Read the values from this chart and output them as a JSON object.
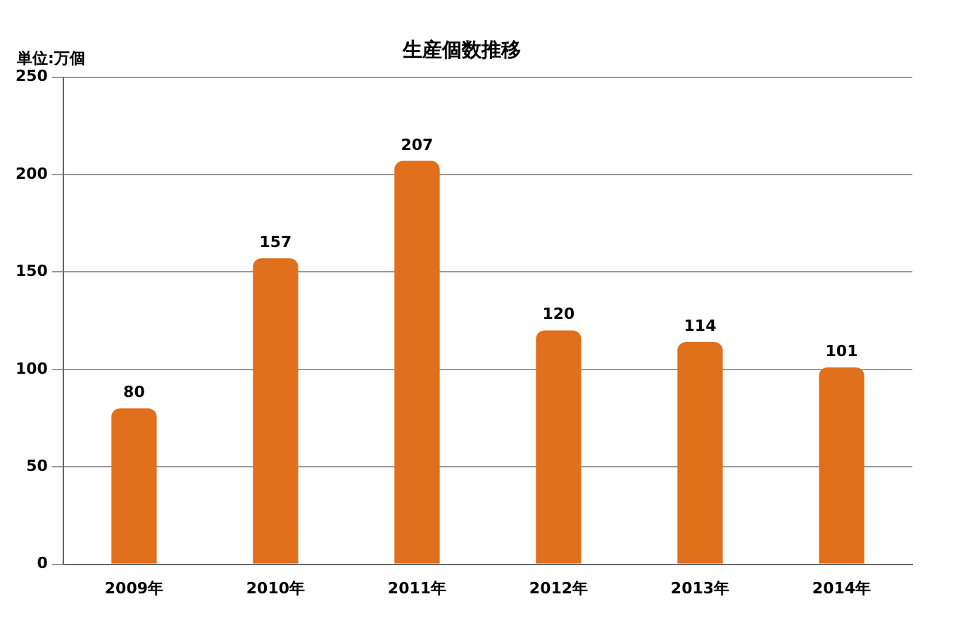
{
  "chart_data": {
    "type": "bar",
    "title": "生産個数推移",
    "ylabel": "単位:万個",
    "categories": [
      "2009年",
      "2010年",
      "2011年",
      "2012年",
      "2013年",
      "2014年"
    ],
    "values": [
      80,
      157,
      207,
      120,
      114,
      101
    ],
    "color": "#e0701c",
    "ylim": [
      0,
      250
    ],
    "yticks": [
      0,
      50,
      100,
      150,
      200,
      250
    ],
    "grid": "y",
    "data_labels": true,
    "legend": false
  }
}
